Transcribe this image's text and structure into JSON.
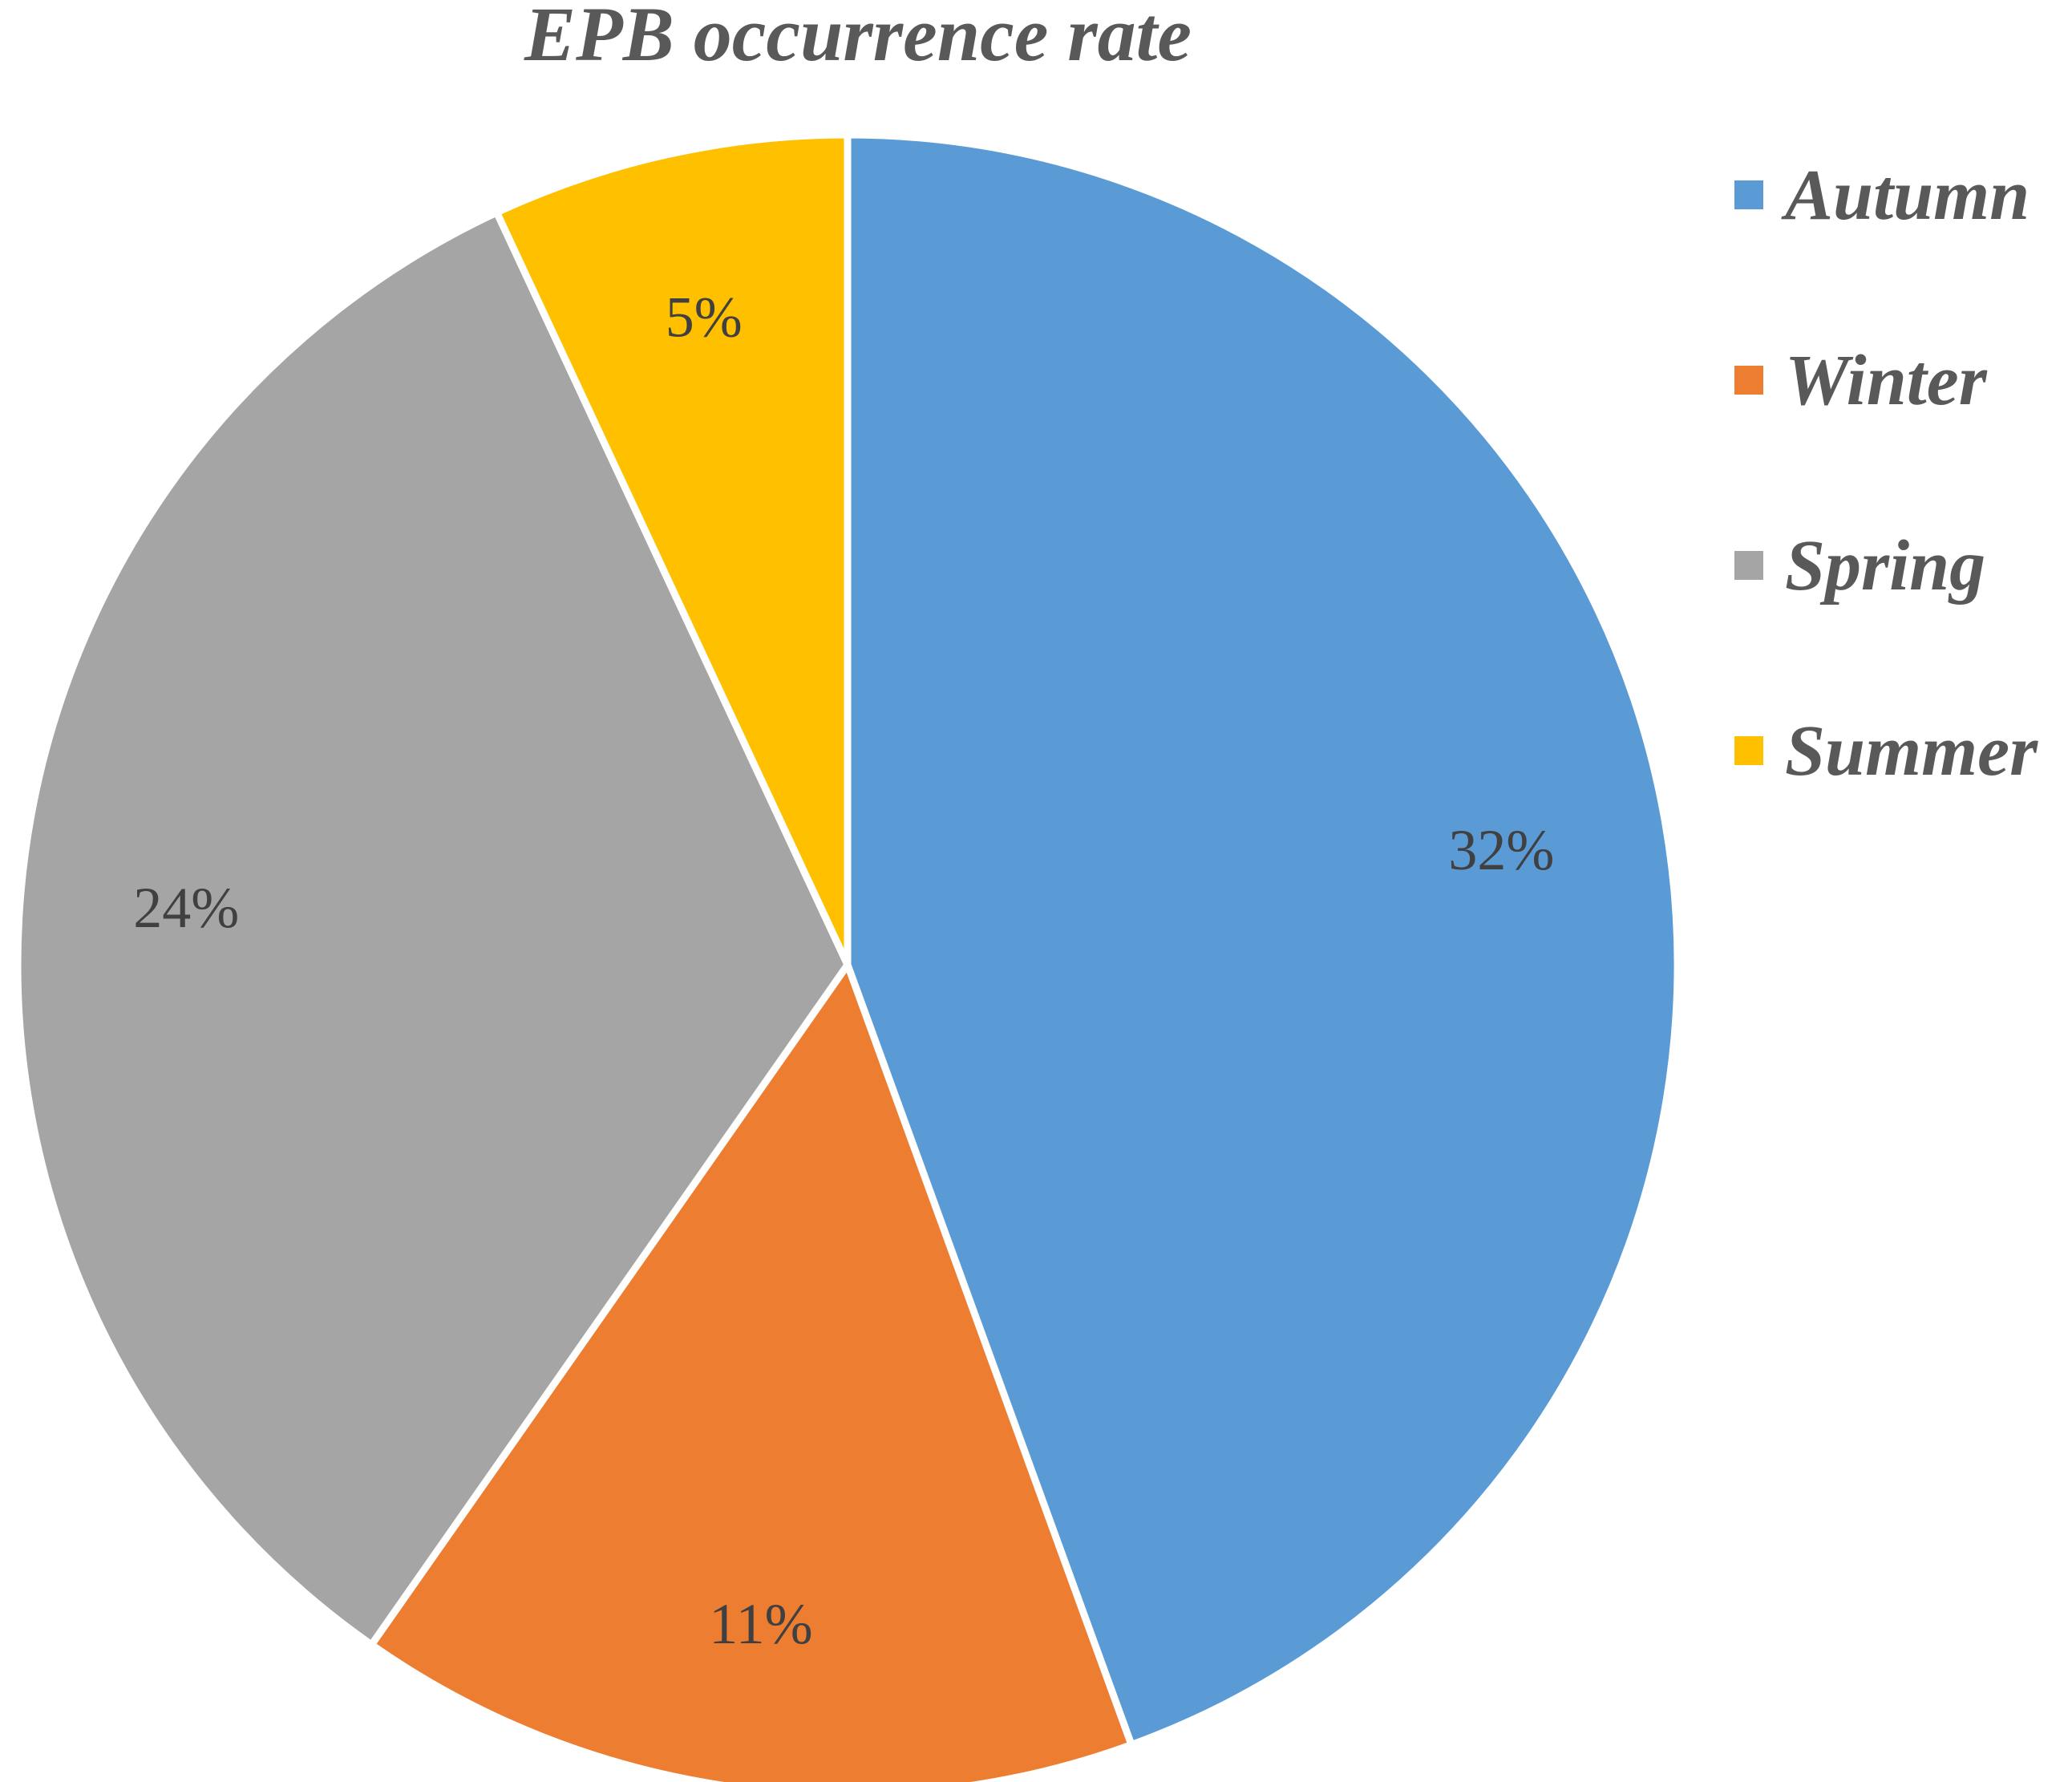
{
  "chart_data": {
    "type": "pie",
    "title": "EPB occurrence rate",
    "categories": [
      "Autumn",
      "Winter",
      "Spring",
      "Summer"
    ],
    "values": [
      32,
      11,
      24,
      5
    ],
    "labels": [
      "32%",
      "11%",
      "24%",
      "5%"
    ],
    "colors": [
      "#5B9BD5",
      "#ED7D31",
      "#A5A5A5",
      "#FFC000"
    ],
    "start_angle_deg": 0,
    "direction": "clockwise",
    "legend": {
      "position": "right",
      "items": [
        "Autumn",
        "Winter",
        "Spring",
        "Summer"
      ]
    }
  }
}
